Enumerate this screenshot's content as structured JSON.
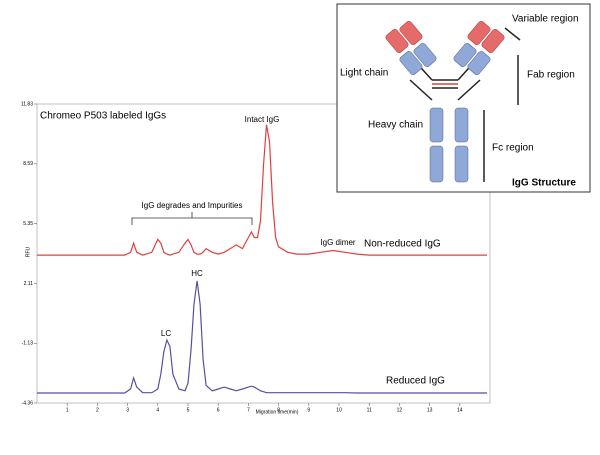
{
  "chart_data": {
    "type": "line",
    "title": "Chromeo P503 labeled IgGs",
    "x_label": "Migration time(min)",
    "y_label": "RFU",
    "x": [
      0,
      1,
      2,
      2.9,
      3.1,
      3.2,
      3.3,
      3.5,
      3.8,
      4.0,
      4.1,
      4.2,
      4.3,
      4.4,
      4.5,
      4.7,
      4.9,
      5.0,
      5.1,
      5.2,
      5.3,
      5.4,
      5.5,
      5.6,
      5.8,
      6.0,
      6.2,
      6.4,
      6.6,
      6.8,
      7.0,
      7.1,
      7.2,
      7.3,
      7.4,
      7.5,
      7.6,
      7.7,
      7.8,
      7.9,
      8.0,
      8.3,
      8.6,
      9.0,
      9.4,
      9.8,
      10.2,
      10.6,
      11,
      12,
      13,
      14,
      14.9
    ],
    "series": [
      {
        "name": "Non-reduced IgG",
        "color": "#e0403c",
        "values": [
          3.65,
          3.65,
          3.65,
          3.65,
          3.8,
          4.3,
          3.8,
          3.65,
          3.8,
          4.5,
          4.3,
          3.8,
          3.7,
          3.65,
          3.7,
          3.8,
          4.3,
          4.5,
          4.2,
          3.8,
          3.7,
          3.7,
          3.8,
          4.0,
          3.8,
          3.7,
          3.8,
          4.0,
          4.2,
          4.0,
          4.6,
          4.9,
          4.6,
          4.6,
          5.5,
          8.5,
          10.7,
          9.8,
          6.5,
          4.6,
          4.1,
          3.8,
          3.7,
          3.7,
          3.8,
          3.9,
          3.8,
          3.7,
          3.65,
          3.65,
          3.65,
          3.65,
          3.65
        ]
      },
      {
        "name": "Reduced IgG",
        "color": "#5b4ea0",
        "values": [
          -3.82,
          -3.82,
          -3.82,
          -3.82,
          -3.6,
          -3.0,
          -3.5,
          -3.8,
          -3.8,
          -3.6,
          -2.8,
          -1.6,
          -0.95,
          -1.3,
          -2.8,
          -3.6,
          -3.7,
          -3.3,
          -1.5,
          1.0,
          2.25,
          1.0,
          -2.0,
          -3.4,
          -3.7,
          -3.6,
          -3.5,
          -3.6,
          -3.7,
          -3.6,
          -3.5,
          -3.45,
          -3.5,
          -3.6,
          -3.7,
          -3.75,
          -3.8,
          -3.8,
          -3.8,
          -3.8,
          -3.8,
          -3.8,
          -3.8,
          -3.8,
          -3.8,
          -3.8,
          -3.8,
          -3.82,
          -3.82,
          -3.82,
          -3.82,
          -3.82,
          -3.82
        ]
      }
    ],
    "xlim": [
      0,
      15
    ],
    "xticks": [
      1,
      2,
      3,
      4,
      5,
      6,
      7,
      8,
      9,
      10,
      11,
      12,
      13,
      14
    ],
    "ylim": [
      -4.36,
      11.83
    ],
    "yticks": [
      11.83,
      8.59,
      5.35,
      2.11,
      -1.13,
      -4.36
    ],
    "annotations": [
      "Intact IgG",
      "IgG degrades and Impurities",
      "IgG dimer",
      "LC",
      "HC"
    ]
  },
  "inset": {
    "title": "IgG Structure",
    "labels": [
      "Variable region",
      "Light chain",
      "Fab region",
      "Heavy chain",
      "Fc region"
    ]
  }
}
